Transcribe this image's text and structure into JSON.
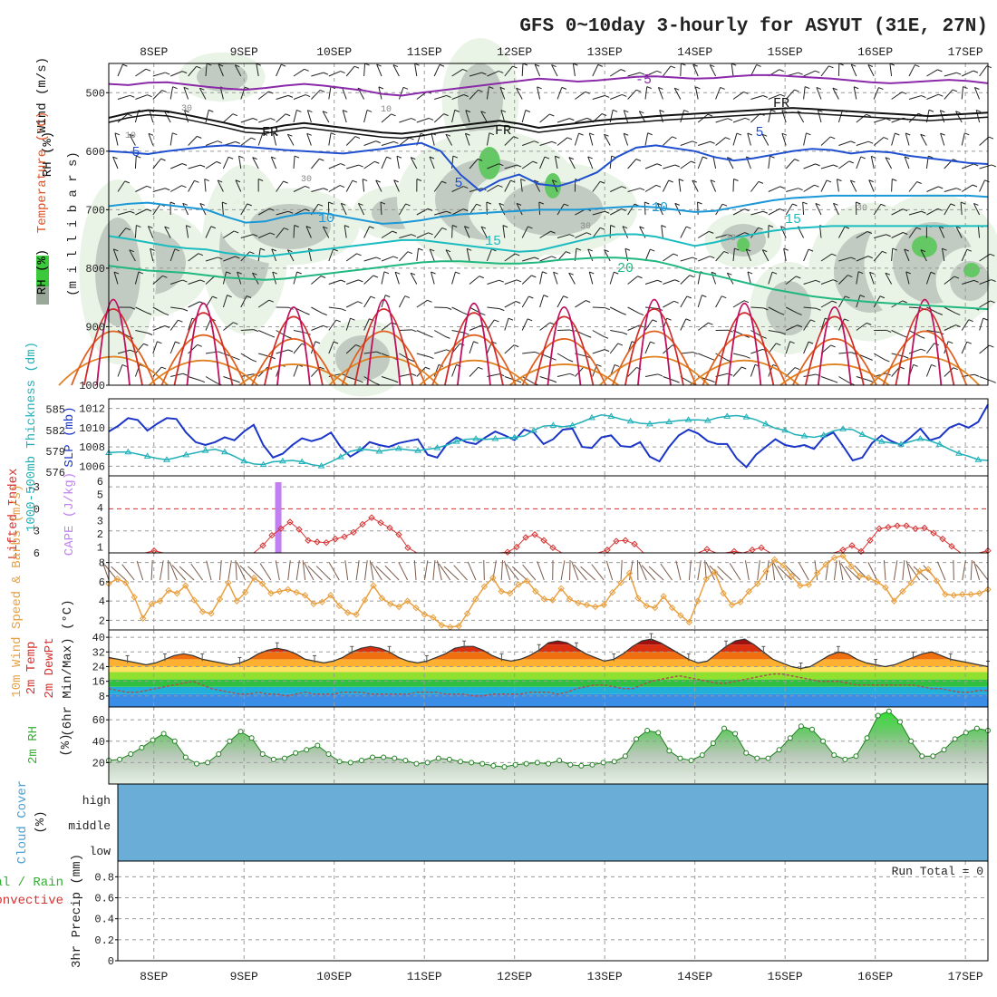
{
  "chart_data": {
    "type": "line",
    "title": "GFS 0~10day 3-hourly for ASYUT (31E, 27N)",
    "x_dates": [
      "8SEP",
      "9SEP",
      "10SEP",
      "11SEP",
      "12SEP",
      "13SEP",
      "14SEP",
      "15SEP",
      "16SEP",
      "17SEP"
    ],
    "panels": {
      "upper_air": {
        "ylabel": "(m i l l i b a r s)",
        "legend": [
          "Wind (m/s)",
          "Temperature (°C)",
          "RH (%)"
        ],
        "yticks": [
          "500",
          "600",
          "700",
          "800",
          "900",
          "1000"
        ],
        "ylim": [
          1000,
          450
        ],
        "contour_labels": [
          "-5",
          "FR",
          "FR",
          "FR",
          "5",
          "5",
          "5",
          "10",
          "10",
          "15",
          "15",
          "20"
        ],
        "rh_labels": [
          "30",
          "10",
          "30",
          "10",
          "30",
          "30",
          "30"
        ],
        "isotherms": [
          {
            "name": "-5",
            "color": "#8a2aa8",
            "p": [
              485,
              487,
              483,
              482,
              486,
              490,
              493,
              495,
              492,
              488,
              485,
              488,
              492,
              496,
              502,
              505,
              500,
              496,
              492,
              488,
              484,
              480,
              476,
              478,
              481,
              479,
              476,
              473,
              472,
              474,
              476,
              475,
              472,
              470,
              470,
              472,
              474,
              476,
              479,
              482,
              484,
              482,
              480,
              478,
              480,
              484
            ]
          },
          {
            "name": "FR",
            "color": "#111111",
            "p": [
              543,
              535,
              530,
              532,
              538,
              545,
              552,
              560,
              562,
              556,
              552,
              556,
              560,
              564,
              568,
              570,
              566,
              560,
              556,
              552,
              548,
              553,
              560,
              556,
              552,
              548,
              545,
              543,
              540,
              538,
              536,
              534,
              532,
              530,
              528,
              526,
              528,
              530,
              532,
              534,
              536,
              538,
              540,
              538,
              536,
              534
            ]
          },
          {
            "name": "5",
            "color": "#2050d0",
            "p": [
              600,
              602,
              605,
              600,
              596,
              592,
              590,
              592,
              595,
              598,
              600,
              602,
              604,
              600,
              596,
              590,
              586,
              600,
              640,
              668,
              650,
              640,
              656,
              660,
              650,
              636,
              610,
              594,
              590,
              595,
              600,
              610,
              616,
              612,
              606,
              600,
              596,
              598,
              604,
              600,
              602,
              608,
              612,
              616,
              620,
              622
            ]
          },
          {
            "name": "10",
            "color": "#1a98d8",
            "p": [
              694,
              690,
              688,
              692,
              696,
              700,
              712,
              722,
              720,
              712,
              706,
              706,
              712,
              718,
              724,
              722,
              718,
              712,
              708,
              706,
              704,
              702,
              700,
              700,
              700,
              698,
              696,
              694,
              696,
              700,
              704,
              702,
              696,
              690,
              684,
              680,
              678,
              676,
              676,
              676,
              676,
              676,
              676,
              676,
              676,
              678
            ]
          },
          {
            "name": "15",
            "color": "#1bbcc0",
            "p": [
              745,
              750,
              756,
              762,
              766,
              768,
              774,
              778,
              780,
              776,
              772,
              768,
              764,
              760,
              756,
              752,
              752,
              756,
              760,
              764,
              768,
              772,
              770,
              762,
              754,
              746,
              742,
              742,
              746,
              754,
              762,
              756,
              748,
              742,
              736,
              732,
              730,
              728,
              728,
              728,
              728,
              728,
              728,
              728,
              728,
              728
            ]
          },
          {
            "name": "20",
            "color": "#20b880",
            "p": [
              796,
              800,
              804,
              806,
              808,
              812,
              816,
              818,
              820,
              818,
              814,
              810,
              806,
              802,
              798,
              794,
              790,
              788,
              788,
              790,
              792,
              792,
              790,
              786,
              784,
              782,
              782,
              784,
              788,
              796,
              806,
              812,
              820,
              828,
              836,
              842,
              848,
              852,
              855,
              858,
              860,
              862,
              864,
              866,
              868,
              870
            ]
          }
        ]
      },
      "slp_thickness": {
        "ylabel_left": "1000-500mb Thickness (dm)",
        "ylabel_right": "SLP (mb)",
        "yticks_left": [
          "585",
          "582",
          "579",
          "576"
        ],
        "yticks_right": [
          "1012",
          "1010",
          "1008",
          "1006"
        ],
        "slp": [
          1009.6,
          1010.2,
          1011.0,
          1010.8,
          1009.7,
          1010.4,
          1011.0,
          1010.9,
          1009.5,
          1008.5,
          1008.2,
          1008.5,
          1009.0,
          1008.7,
          1009.6,
          1010.3,
          1008.2,
          1006.9,
          1007.3,
          1008.2,
          1008.9,
          1008.6,
          1008.9,
          1009.5,
          1008.0,
          1007.0,
          1007.6,
          1008.5,
          1008.2,
          1008.0,
          1008.4,
          1008.6,
          1008.8,
          1007.2,
          1006.9,
          1008.3,
          1009.0,
          1008.5,
          1008.3,
          1009.0,
          1009.6,
          1009.2,
          1008.7,
          1009.8,
          1009.5,
          1008.3,
          1008.8,
          1009.8,
          1009.9,
          1008.0,
          1007.9,
          1009.0,
          1009.2,
          1008.1,
          1008.0,
          1008.5,
          1007.0,
          1006.5,
          1008.0,
          1009.2,
          1009.8,
          1009.4,
          1008.6,
          1008.3,
          1008.3,
          1006.8,
          1005.9,
          1007.2,
          1008.0,
          1008.8,
          1008.2,
          1008.0,
          1008.2,
          1007.8,
          1009.0,
          1009.5,
          1008.1,
          1006.6,
          1006.9,
          1008.4,
          1009.2,
          1008.6,
          1008.2,
          1009.0,
          1009.9,
          1008.7,
          1009.0,
          1010.0,
          1010.4,
          1010.0,
          1010.6,
          1012.4
        ],
        "thickness": [
          578.8,
          578.9,
          578.9,
          578.6,
          578.3,
          578.0,
          577.8,
          578.1,
          578.5,
          578.8,
          579.1,
          579.3,
          578.9,
          578.3,
          577.6,
          577.2,
          577.1,
          577.5,
          577.6,
          577.7,
          577.5,
          577.1,
          576.9,
          577.5,
          578.2,
          579.0,
          579.3,
          579.2,
          579.0,
          579.2,
          579.4,
          579.2,
          579.1,
          579.3,
          579.5,
          579.9,
          580.4,
          580.7,
          580.8,
          580.7,
          580.8,
          580.9,
          581.0,
          581.2,
          582.0,
          582.6,
          582.7,
          582.5,
          582.7,
          583.2,
          583.8,
          584.2,
          584.0,
          583.6,
          583.3,
          583.0,
          582.9,
          583.1,
          583.2,
          583.4,
          583.5,
          583.5,
          583.4,
          583.8,
          584.0,
          584.1,
          583.9,
          583.5,
          582.9,
          582.3,
          582.0,
          581.4,
          581.2,
          581.0,
          581.3,
          581.9,
          582.2,
          582.1,
          581.4,
          580.8,
          580.4,
          580.2,
          580.0,
          580.4,
          580.8,
          580.5,
          580.0,
          579.3,
          578.7,
          578.3,
          577.8,
          577.7
        ]
      },
      "li_cape": {
        "ylabel_left": "Lifted Index",
        "ylabel_right": "CAPE (J/kg)",
        "yticks_li": [
          "-3",
          "0",
          "3",
          "6"
        ],
        "yticks_cape": [
          "6",
          "5",
          "4",
          "3",
          "2",
          "1"
        ],
        "cape_bar_day": 9.375,
        "cape_bar_value": 6,
        "li": [
          6,
          6,
          6,
          6,
          6,
          5.7,
          6,
          6,
          6,
          6,
          6,
          6,
          6,
          6,
          6,
          6,
          6,
          5,
          3.6,
          2.7,
          1.8,
          2.8,
          4.3,
          4.5,
          4.6,
          4.1,
          3.8,
          3.2,
          2.1,
          1.2,
          1.9,
          2.6,
          3.5,
          5.3,
          6,
          6,
          6,
          6,
          6,
          6,
          6,
          6,
          6,
          6,
          5.9,
          5.2,
          3.9,
          3.5,
          4.3,
          5.3,
          6,
          6,
          6,
          6,
          6,
          5.6,
          4.4,
          4.3,
          4.8,
          6,
          6,
          6,
          6,
          6,
          6,
          6,
          5.5,
          6,
          6,
          5.8,
          6,
          5.6,
          5.3,
          6,
          6,
          6,
          6,
          6,
          6,
          6,
          6,
          5.6,
          5,
          5.8,
          4.3,
          2.7,
          2.5,
          2.3,
          2.3,
          2.7,
          2.6,
          3.3,
          4.1,
          5.1,
          6,
          6,
          6,
          5.7
        ]
      },
      "wind10m": {
        "ylabel": "10m Wind Speed & Barbs (m/s)",
        "yticks": [
          "8",
          "6",
          "4",
          "2"
        ],
        "speed": [
          5.8,
          6.3,
          5.9,
          4.4,
          2.2,
          3.7,
          4.0,
          5.1,
          4.8,
          5.6,
          4.1,
          2.9,
          2.7,
          4.2,
          5.9,
          4.0,
          4.9,
          6.4,
          5.8,
          4.8,
          5.0,
          5.2,
          4.9,
          4.6,
          3.7,
          3.9,
          4.6,
          3.5,
          2.8,
          2.6,
          4.1,
          5.6,
          4.3,
          3.7,
          3.4,
          4.0,
          3.3,
          2.6,
          2.3,
          1.5,
          1.3,
          1.4,
          2.7,
          4.2,
          5.5,
          6.4,
          5.0,
          4.8,
          5.7,
          6.1,
          5.0,
          4.2,
          4.1,
          5.3,
          4.2,
          3.8,
          3.6,
          3.4,
          3.6,
          4.9,
          5.9,
          6.9,
          4.3,
          3.5,
          3.3,
          4.5,
          3.3,
          2.5,
          1.8,
          4.0,
          6.3,
          7.0,
          4.8,
          3.6,
          3.9,
          5.0,
          5.8,
          7.1,
          8.3,
          7.7,
          6.6,
          5.6,
          5.7,
          6.9,
          7.8,
          8.5,
          8.7,
          7.6,
          6.6,
          6.4,
          6.0,
          5.4,
          4.0,
          5.0,
          5.9,
          7.1,
          7.3,
          6.1,
          4.7,
          4.6,
          4.7,
          4.7,
          4.8,
          5.2
        ]
      },
      "temp2m": {
        "ylabel": "2m Temp 2m DewPt (6hr Min/Max) (°C)",
        "yticks": [
          "40",
          "32",
          "24",
          "16",
          "8"
        ],
        "temp": [
          29,
          28,
          27,
          26,
          25,
          26,
          28,
          30,
          31,
          30,
          28,
          27,
          26,
          25,
          26,
          28,
          31,
          33,
          34,
          33,
          31,
          28,
          27,
          26,
          27,
          29,
          32,
          34,
          35,
          34,
          32,
          29,
          27,
          26,
          27,
          29,
          31,
          34,
          35,
          35,
          33,
          30,
          28,
          27,
          28,
          30,
          33,
          37,
          38,
          37,
          34,
          31,
          29,
          27,
          28,
          31,
          35,
          38,
          39,
          37,
          34,
          31,
          28,
          26,
          27,
          31,
          35,
          38,
          39,
          36,
          32,
          28,
          26,
          24,
          23,
          24,
          27,
          30,
          32,
          31,
          28,
          26,
          25,
          24,
          25,
          27,
          29,
          31,
          32,
          30,
          28,
          27,
          26,
          25,
          24
        ],
        "dewpt": [
          12,
          11,
          10,
          10,
          11,
          12,
          13,
          14,
          15,
          16,
          14,
          12,
          11,
          10,
          9,
          9,
          10,
          9,
          9,
          8,
          9,
          10,
          9,
          9,
          9,
          10,
          10,
          10,
          9,
          9,
          9,
          9,
          9,
          10,
          10,
          10,
          9,
          9,
          9,
          8,
          8,
          9,
          9,
          9,
          9,
          10,
          10,
          10,
          9,
          10,
          12,
          13,
          14,
          14,
          13,
          12,
          12,
          14,
          16,
          17,
          18,
          19,
          18,
          17,
          16,
          15,
          15,
          16,
          17,
          18,
          19,
          20,
          20,
          19,
          18,
          17,
          16,
          16,
          16,
          15,
          14,
          14,
          14,
          14,
          14,
          14,
          14,
          13,
          12,
          12,
          11,
          10,
          10,
          11,
          11
        ]
      },
      "rh2m": {
        "ylabel": "2m RH (%)",
        "yticks": [
          "60",
          "40",
          "20"
        ],
        "rh": [
          22,
          23,
          28,
          34,
          41,
          47,
          40,
          25,
          19,
          20,
          28,
          40,
          49,
          43,
          28,
          23,
          24,
          29,
          32,
          36,
          28,
          21,
          20,
          22,
          25,
          25,
          24,
          22,
          19,
          20,
          24,
          23,
          21,
          20,
          19,
          17,
          16,
          18,
          19,
          20,
          19,
          22,
          18,
          17,
          18,
          20,
          21,
          26,
          42,
          50,
          48,
          31,
          24,
          22,
          27,
          38,
          52,
          47,
          29,
          24,
          24,
          32,
          43,
          54,
          51,
          40,
          27,
          23,
          26,
          43,
          64,
          68,
          58,
          40,
          26,
          26,
          32,
          42,
          48,
          52,
          50
        ]
      },
      "cloud": {
        "ylabel": "Cloud Cover (%)",
        "levels": [
          "high",
          "middle",
          "low"
        ],
        "color": "#6aaed8"
      },
      "precip": {
        "ylabel": "3hr Precip (mm)",
        "legend": [
          "Total / Rain",
          "Convective"
        ],
        "yticks": [
          "0.8",
          "0.6",
          "0.4",
          "0.2",
          "0"
        ],
        "run_total": "Run Total = 0"
      }
    }
  }
}
